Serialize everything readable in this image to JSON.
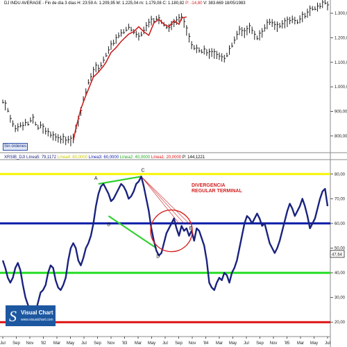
{
  "colors": {
    "price_bar": "#1a1a1a",
    "trend_line": "#cc2020",
    "rsi_line": "#1a237e",
    "level_80": "#f6f600",
    "level_60": "#0a1aa8",
    "level_40": "#22dd22",
    "level_20": "#dd1010",
    "divergence_line": "#2fd02f",
    "annotation": "#d42020",
    "current_label": "#222222"
  },
  "top_header": {
    "title": "DJ INDU AVERAGE - Fin de día 3 días H: 23:59",
    "ohlc": "A: 1.209,95 M: 1.225,04 m: 1.179,08 C: 1.180,82",
    "change": "P: -14,80",
    "volume": "V: 383.669",
    "date": "18/05/1983"
  },
  "orders_button": "Sin órdenes",
  "bottom_header": {
    "ind": "XRSIB_DJI Línea5: 79,1172",
    "l4": "Línea4: 80,0000",
    "l3": "Línea3: 60,0000",
    "l2": "Línea2: 40,0000",
    "l1": "Línea1: 20,0000",
    "p": "P: 144,1221"
  },
  "annotation": {
    "line1": "DIVERGENCIA",
    "line2": "REGULAR TERMINAL"
  },
  "points": {
    "a": "A",
    "b": "B",
    "c": "C",
    "d": "D",
    "e": "E"
  },
  "logo": {
    "title": "Visual Chart",
    "url": "www.visualchart.com",
    "mark": "S"
  },
  "current_value_label": "47,64",
  "chart_data": [
    {
      "type": "line",
      "title": "DJ INDU AVERAGE",
      "ylim": [
        760,
        1320
      ],
      "y_ticks": [
        "1.300,00",
        "1.200,00",
        "1.100,00",
        "1.000,00",
        "900,00",
        "800,00"
      ],
      "y_tick_values": [
        1300,
        1200,
        1100,
        1000,
        900,
        800
      ],
      "x_ticks": [
        "Jul",
        "Sep",
        "Nov",
        "'82",
        "Mar",
        "May",
        "Jul",
        "Sep",
        "Nov",
        "'83",
        "Mar",
        "May",
        "Jul",
        "Sep",
        "Nov",
        "'84",
        "Mar",
        "May",
        "Jul",
        "Sep",
        "Nov",
        "'85",
        "Mar",
        "May",
        "Jul"
      ],
      "series": [
        {
          "values": [
            940,
            925,
            905,
            870,
            850,
            830,
            835,
            845,
            840,
            855,
            850,
            865,
            870,
            850,
            835,
            845,
            830,
            820,
            815,
            805,
            800,
            795,
            790,
            785,
            790,
            780,
            785,
            780,
            790,
            830,
            860,
            900,
            950,
            980,
            1020,
            1040,
            1060,
            1080,
            1075,
            1090,
            1110,
            1130,
            1150,
            1170,
            1180,
            1195,
            1210,
            1220,
            1225,
            1235,
            1245,
            1235,
            1225,
            1215,
            1205,
            1215,
            1230,
            1245,
            1260,
            1270,
            1270,
            1280,
            1275,
            1265,
            1255,
            1245,
            1240,
            1250,
            1260,
            1270,
            1280,
            1285,
            1260,
            1230,
            1200,
            1170,
            1160,
            1155,
            1150,
            1145,
            1150,
            1140,
            1135,
            1140,
            1135,
            1130,
            1125,
            1120,
            1115,
            1130,
            1150,
            1170,
            1190,
            1210,
            1230,
            1225,
            1220,
            1230,
            1240,
            1230,
            1210,
            1200,
            1210,
            1220,
            1240,
            1255,
            1265,
            1260,
            1250,
            1245,
            1250,
            1255,
            1260,
            1265,
            1270,
            1275,
            1270,
            1265,
            1275,
            1285,
            1290,
            1300,
            1310,
            1320,
            1320,
            1325,
            1330,
            1340,
            1345,
            1330
          ]
        }
      ],
      "trend_line": {
        "x": [
          28,
          29,
          31,
          33,
          36,
          38,
          40,
          41,
          43,
          45,
          47,
          50,
          52,
          54,
          56,
          58,
          59,
          60,
          62,
          64,
          66,
          68,
          70,
          71,
          73
        ],
        "y": [
          780,
          830,
          910,
          965,
          1040,
          1060,
          1085,
          1100,
          1140,
          1160,
          1185,
          1215,
          1225,
          1245,
          1225,
          1210,
          1235,
          1260,
          1275,
          1255,
          1245,
          1270,
          1255,
          1280,
          1285
        ]
      }
    },
    {
      "type": "line",
      "title": "XRSIB_DJI",
      "ylim": [
        15,
        85
      ],
      "y_ticks": [
        "80,00",
        "70,00",
        "60,00",
        "50,00",
        "40,00",
        "30,00",
        "20,00"
      ],
      "y_tick_values": [
        80,
        70,
        60,
        50,
        40,
        30,
        20
      ],
      "levels": [
        80,
        60,
        40,
        20
      ],
      "current_value": 47.64,
      "series": [
        {
          "values": [
            45,
            42,
            38,
            36,
            38,
            42,
            44,
            41,
            35,
            30,
            27,
            25,
            23,
            24,
            28,
            32,
            33,
            35,
            40,
            43,
            42,
            37,
            34,
            33,
            35,
            38,
            45,
            50,
            52,
            50,
            45,
            43,
            46,
            50,
            52,
            55,
            60,
            67,
            72,
            75,
            76,
            74,
            72,
            69,
            70,
            72,
            74,
            76,
            75,
            73,
            70,
            71,
            73,
            76,
            77,
            79,
            75,
            70,
            65,
            58,
            53,
            49,
            47,
            48,
            52,
            56,
            58,
            60,
            62,
            58,
            55,
            59,
            57,
            58,
            55,
            57,
            53,
            58,
            57,
            54,
            51,
            45,
            36,
            34,
            33,
            36,
            38,
            37,
            40,
            39,
            36,
            40,
            42,
            45,
            50,
            55,
            60,
            63,
            62,
            60,
            62,
            64,
            62,
            59,
            60,
            56,
            52,
            50,
            48,
            50,
            53,
            57,
            61,
            65,
            68,
            66,
            63,
            65,
            67,
            70,
            67,
            63,
            58,
            60,
            62,
            66,
            70,
            73,
            74,
            67
          ],
          "label_points": {
            "A": [
              38,
              76
            ],
            "B": [
              42,
              63
            ],
            "C": [
              55,
              79
            ],
            "D": [
              61,
              50
            ],
            "E": [
              74,
              56
            ]
          }
        }
      ],
      "divergence_lines": [
        {
          "x": [
            38,
            55
          ],
          "y": [
            76,
            79
          ]
        },
        {
          "x": [
            42,
            61
          ],
          "y": [
            63,
            50
          ]
        }
      ],
      "fan_lines": [
        {
          "x": [
            55,
            70
          ],
          "y": [
            79,
            60
          ]
        },
        {
          "x": [
            55,
            72
          ],
          "y": [
            79,
            60
          ]
        },
        {
          "x": [
            55,
            74
          ],
          "y": [
            79,
            60
          ]
        }
      ],
      "circle_center": [
        67,
        57
      ]
    }
  ]
}
